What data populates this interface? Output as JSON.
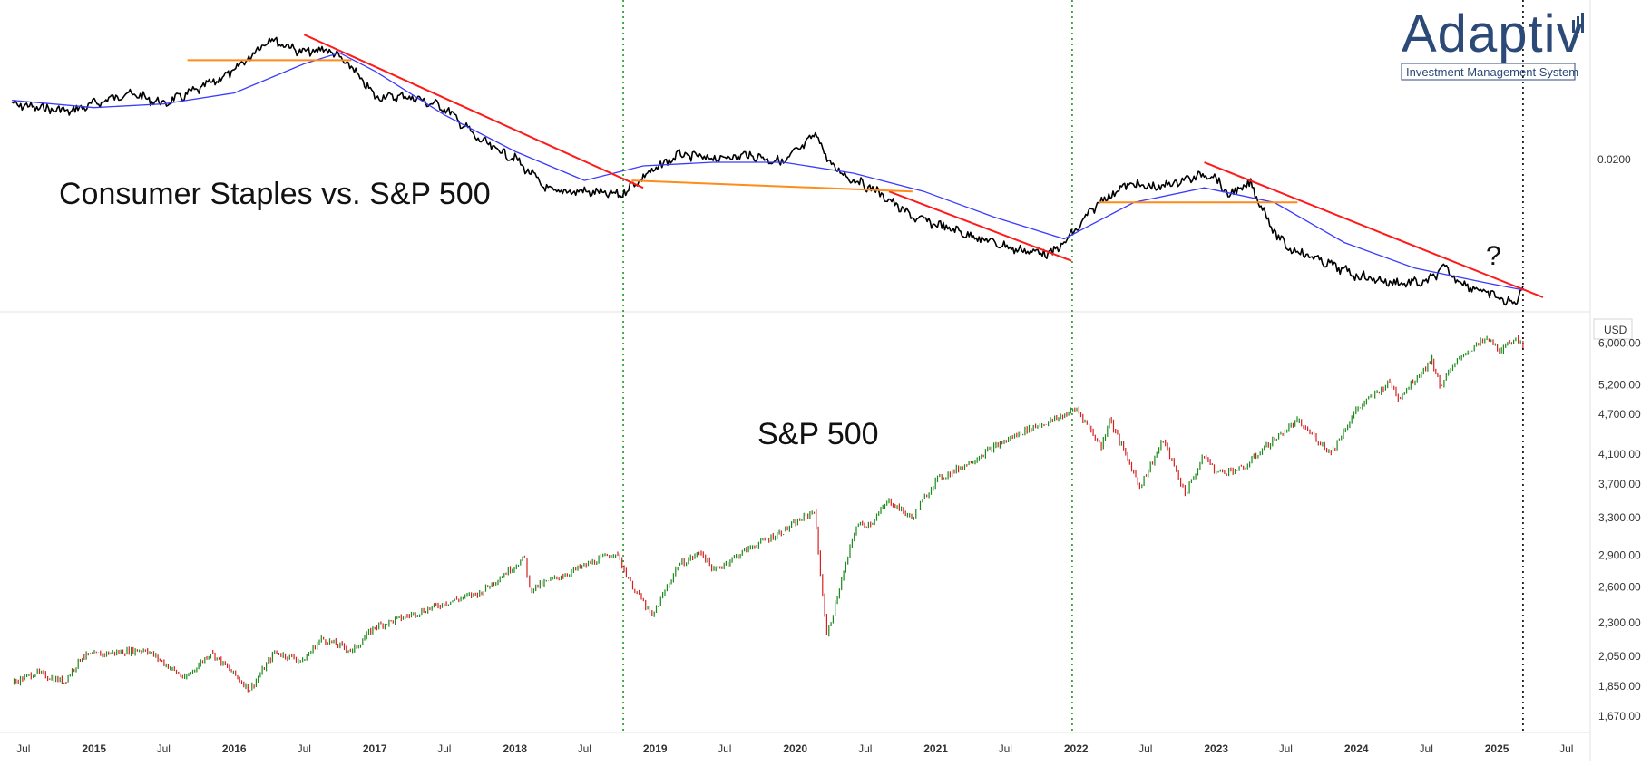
{
  "chart_data": [
    {
      "type": "line",
      "title": "Consumer Staples vs. S&P 500",
      "price_label": "0.0200",
      "price_label_value": 0.02,
      "annotation": "?",
      "series": [
        {
          "dates": [
            "2014-06-01",
            "2014-08-01",
            "2014-11-01",
            "2015-02-01",
            "2015-04-01",
            "2015-07-01",
            "2015-10-01",
            "2016-01-01",
            "2016-04-01",
            "2016-07-01",
            "2016-09-01",
            "2016-11-01",
            "2017-01-01",
            "2017-04-01",
            "2017-07-01",
            "2017-10-01",
            "2018-01-01",
            "2018-04-01",
            "2018-07-01",
            "2018-10-01",
            "2018-12-01",
            "2019-03-01",
            "2019-06-01",
            "2019-09-01",
            "2019-12-01",
            "2020-03-01",
            "2020-03-20",
            "2020-05-01",
            "2020-08-01",
            "2020-11-01",
            "2021-02-01",
            "2021-05-01",
            "2021-08-01",
            "2021-11-01",
            "2021-12-20",
            "2022-03-01",
            "2022-05-15",
            "2022-08-01",
            "2022-10-01",
            "2022-12-20",
            "2023-02-01",
            "2023-04-01",
            "2023-06-01",
            "2023-07-01",
            "2023-10-01",
            "2024-01-01",
            "2024-04-01",
            "2024-07-01",
            "2024-08-15",
            "2024-10-01",
            "2025-01-01",
            "2025-02-15",
            "2025-03-10"
          ],
          "values": [
            0.0221,
            0.022,
            0.0219,
            0.0222,
            0.0224,
            0.0221,
            0.0225,
            0.023,
            0.0239,
            0.0235,
            0.0236,
            0.0231,
            0.0223,
            0.0223,
            0.022,
            0.0211,
            0.0206,
            0.0197,
            0.0197,
            0.0196,
            0.0201,
            0.0207,
            0.0206,
            0.0207,
            0.0205,
            0.0213,
            0.0206,
            0.0202,
            0.0197,
            0.019,
            0.0187,
            0.0184,
            0.0181,
            0.018,
            0.0185,
            0.0194,
            0.0199,
            0.0198,
            0.02,
            0.0202,
            0.0196,
            0.0199,
            0.0186,
            0.0182,
            0.0178,
            0.0174,
            0.0172,
            0.0172,
            0.0176,
            0.0172,
            0.0168,
            0.0166,
            0.0171
          ]
        },
        {
          "name": "",
          "dates": [
            "2014-06-01",
            "2015-01-01",
            "2015-07-01",
            "2016-01-01",
            "2016-07-01",
            "2016-10-01",
            "2017-01-01",
            "2017-07-01",
            "2018-01-01",
            "2018-07-01",
            "2018-12-01",
            "2019-06-01",
            "2019-12-01",
            "2020-06-01",
            "2020-12-01",
            "2021-06-01",
            "2021-12-01",
            "2022-06-01",
            "2022-12-01",
            "2023-06-01",
            "2023-12-01",
            "2024-06-01",
            "2024-12-01",
            "2025-03-10"
          ],
          "values": [
            0.0222,
            0.022,
            0.0221,
            0.0224,
            0.0232,
            0.0235,
            0.023,
            0.0218,
            0.0208,
            0.02,
            0.0204,
            0.0205,
            0.0205,
            0.0202,
            0.0197,
            0.019,
            0.0184,
            0.0194,
            0.0198,
            0.0194,
            0.0183,
            0.0176,
            0.0172,
            0.017
          ]
        }
      ],
      "trendlines": [
        {
          "color": "#ff1a1a",
          "from": [
            "2016-07-01",
            0.024
          ],
          "to": [
            "2018-12-01",
            0.0198
          ]
        },
        {
          "color": "#ff1a1a",
          "from": [
            "2020-09-01",
            0.0197
          ],
          "to": [
            "2021-12-20",
            0.0178
          ]
        },
        {
          "color": "#ff1a1a",
          "from": [
            "2022-12-01",
            0.0205
          ],
          "to": [
            "2025-05-01",
            0.0168
          ]
        },
        {
          "color": "#ff8c1a",
          "from": [
            "2015-09-01",
            0.0233
          ],
          "to": [
            "2016-11-01",
            0.0233
          ]
        },
        {
          "color": "#ff8c1a",
          "from": [
            "2018-11-01",
            0.02
          ],
          "to": [
            "2020-11-01",
            0.0197
          ]
        },
        {
          "color": "#ff8c1a",
          "from": [
            "2022-03-01",
            0.0194
          ],
          "to": [
            "2023-08-01",
            0.0194
          ]
        }
      ],
      "ylim": [
        0.0165,
        0.0247
      ]
    },
    {
      "type": "line",
      "title": "S&P 500",
      "currency": "USD",
      "yscale": "log",
      "yticks": [
        "6,000.00",
        "5,200.00",
        "4,700.00",
        "4,100.00",
        "3,700.00",
        "3,300.00",
        "2,900.00",
        "2,600.00",
        "2,300.00",
        "2,050.00",
        "1,850.00",
        "1,670.00"
      ],
      "ytick_values": [
        6000,
        5200,
        4700,
        4100,
        3700,
        3300,
        2900,
        2600,
        2300,
        2050,
        1850,
        1670
      ],
      "series": [
        {
          "dates": [
            "2014-06-01",
            "2014-08-01",
            "2014-10-15",
            "2014-12-01",
            "2015-03-01",
            "2015-05-15",
            "2015-08-25",
            "2015-11-01",
            "2016-02-11",
            "2016-04-15",
            "2016-06-27",
            "2016-08-15",
            "2016-11-04",
            "2017-01-01",
            "2017-04-01",
            "2017-07-01",
            "2017-10-01",
            "2018-01-26",
            "2018-02-08",
            "2018-05-01",
            "2018-09-20",
            "2018-10-29",
            "2018-12-24",
            "2019-03-01",
            "2019-05-01",
            "2019-06-03",
            "2019-09-01",
            "2019-12-01",
            "2020-02-19",
            "2020-03-23",
            "2020-06-08",
            "2020-07-15",
            "2020-09-01",
            "2020-10-30",
            "2020-12-31",
            "2021-03-01",
            "2021-06-01",
            "2021-09-01",
            "2021-11-01",
            "2022-01-03",
            "2022-03-08",
            "2022-03-29",
            "2022-06-16",
            "2022-08-16",
            "2022-10-12",
            "2022-12-01",
            "2023-01-01",
            "2023-03-13",
            "2023-05-01",
            "2023-07-31",
            "2023-10-27",
            "2023-12-31",
            "2024-03-28",
            "2024-04-19",
            "2024-07-16",
            "2024-08-05",
            "2024-10-01",
            "2024-12-06",
            "2025-01-13",
            "2025-02-19",
            "2025-03-10"
          ],
          "values": [
            1870,
            1940,
            1880,
            2050,
            2080,
            2100,
            1900,
            2080,
            1830,
            2080,
            2020,
            2180,
            2090,
            2270,
            2360,
            2460,
            2550,
            2872,
            2580,
            2700,
            2930,
            2640,
            2350,
            2800,
            2930,
            2750,
            2970,
            3150,
            3380,
            2200,
            3210,
            3230,
            3500,
            3290,
            3750,
            3900,
            4200,
            4480,
            4600,
            4790,
            4200,
            4630,
            3670,
            4300,
            3580,
            4080,
            3850,
            3900,
            4170,
            4590,
            4120,
            4770,
            5250,
            4970,
            5670,
            5180,
            5750,
            6090,
            5830,
            6140,
            5850
          ]
        }
      ],
      "ylim": [
        1590,
        6450
      ]
    }
  ],
  "x_axis_labels": [
    "Jul",
    "2015",
    "Jul",
    "2016",
    "Jul",
    "2017",
    "Jul",
    "2018",
    "Jul",
    "2019",
    "Jul",
    "2020",
    "Jul",
    "2021",
    "Jul",
    "2022",
    "Jul",
    "2023",
    "Jul",
    "2024",
    "Jul",
    "2025",
    "Jul"
  ],
  "x_axis_dates": [
    "2014-07-01",
    "2015-01-01",
    "2015-07-01",
    "2016-01-01",
    "2016-07-01",
    "2017-01-01",
    "2017-07-01",
    "2018-01-01",
    "2018-07-01",
    "2019-01-01",
    "2019-07-01",
    "2020-01-01",
    "2020-07-01",
    "2021-01-01",
    "2021-07-01",
    "2022-01-01",
    "2022-07-01",
    "2023-01-01",
    "2023-07-01",
    "2024-01-01",
    "2024-07-01",
    "2025-01-01",
    "2025-07-01"
  ],
  "x_range": [
    "2014-05-01",
    "2025-09-01"
  ],
  "markers": [
    {
      "date": "2018-10-10",
      "color": "#1a9a1a",
      "style": "dotted"
    },
    {
      "date": "2021-12-22",
      "color": "#1a9a1a",
      "style": "dotted"
    },
    {
      "date": "2025-03-10",
      "color": "#000000",
      "style": "dotted"
    }
  ],
  "logo": {
    "word": "Adaptiv",
    "tagline": "Investment Management System"
  },
  "colors": {
    "price_line": "#000000",
    "moving_average": "#3b3bff",
    "candle_up": "#1a8a1a",
    "candle_down": "#d42020",
    "trend_red": "#ff1a1a",
    "trend_orange": "#ff8c1a",
    "marker_green": "#1a9a1a",
    "logo_blue": "#2c4a78"
  }
}
